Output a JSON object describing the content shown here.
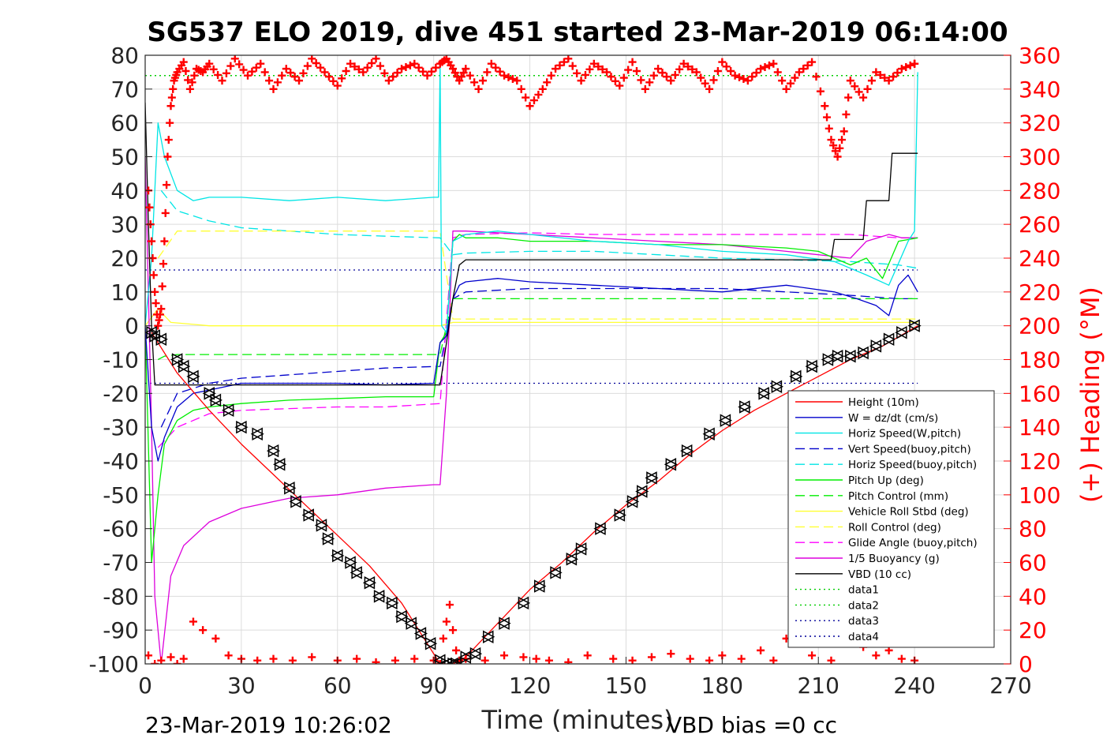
{
  "chart_data": {
    "type": "line",
    "title": "SG537 ELO 2019, dive 451 started 23-Mar-2019 06:14:00",
    "xlabel": "Time (minutes)",
    "ylabel_right": "(+) Heading (°M)",
    "xlim": [
      0,
      270
    ],
    "ylim_left": [
      -100,
      80
    ],
    "ylim_right": [
      0,
      360
    ],
    "x_ticks": [
      "0",
      "30",
      "60",
      "90",
      "120",
      "150",
      "180",
      "210",
      "240",
      "270"
    ],
    "y_ticks_left": [
      "-100",
      "-90",
      "-80",
      "-70",
      "-60",
      "-50",
      "-40",
      "-30",
      "-20",
      "-10",
      "0",
      "10",
      "20",
      "30",
      "40",
      "50",
      "60",
      "70",
      "80"
    ],
    "y_ticks_right": [
      "0",
      "20",
      "40",
      "60",
      "80",
      "100",
      "120",
      "140",
      "160",
      "180",
      "200",
      "220",
      "240",
      "260",
      "280",
      "300",
      "320",
      "340",
      "360"
    ],
    "grid": true,
    "legend_position": "lower-right",
    "footer_left": "23-Mar-2019 10:26:02",
    "footer_right": "VBD bias =0 cc",
    "colors": {
      "height": "#ff0000",
      "w": "#0000cc",
      "horiz": "#00e5e5",
      "pitch": "#00ee00",
      "roll": "#ffff33",
      "glide": "#ff00ff",
      "buoy": "#dd00dd",
      "vbd": "#000000",
      "data12": "#00cc00",
      "data34": "#000099",
      "heading": "#ff0000",
      "markers": "#000000"
    },
    "series": [
      {
        "name": "Height (10m)",
        "color": "#ff0000",
        "style": "solid",
        "x": [
          2,
          10,
          20,
          30,
          40,
          50,
          60,
          70,
          80,
          92,
          96,
          100,
          110,
          120,
          130,
          140,
          150,
          160,
          170,
          180,
          190,
          200,
          210,
          220,
          230,
          241
        ],
        "y": [
          -2,
          -14,
          -25,
          -35,
          -44,
          -53,
          -62,
          -71,
          -82,
          -100,
          -100,
          -98,
          -88,
          -78,
          -70,
          -61,
          -53,
          -46,
          -38,
          -31,
          -25,
          -20,
          -15,
          -10,
          -6,
          0
        ]
      },
      {
        "name": "W = dz/dt (cm/s)",
        "color": "#0000cc",
        "style": "solid",
        "x": [
          0,
          2,
          4,
          6,
          10,
          15,
          20,
          30,
          45,
          60,
          75,
          90,
          92,
          94,
          96,
          98,
          100,
          110,
          120,
          140,
          160,
          180,
          200,
          215,
          222,
          228,
          232,
          235,
          238,
          241
        ],
        "y": [
          0,
          -30,
          -40,
          -33,
          -24,
          -20,
          -19,
          -17,
          -17,
          -17,
          -17.5,
          -17,
          -5,
          -3,
          8,
          12,
          13,
          14,
          13,
          12,
          11,
          10,
          12,
          10,
          8,
          6,
          3,
          12,
          15,
          10
        ]
      },
      {
        "name": "Horiz Speed(W,pitch)",
        "color": "#00e5e5",
        "style": "solid",
        "x": [
          0,
          2,
          4,
          6,
          10,
          15,
          20,
          30,
          45,
          60,
          75,
          90,
          91.5,
          92,
          92.5,
          94,
          96,
          98,
          100,
          110,
          120,
          140,
          160,
          180,
          200,
          215,
          225,
          232,
          238,
          240,
          241
        ],
        "y": [
          0,
          20,
          60,
          50,
          40,
          37,
          38,
          38,
          37,
          38,
          37,
          38,
          38,
          78,
          0,
          -2,
          25,
          26,
          27,
          28,
          27,
          25,
          24,
          22,
          21,
          19,
          15,
          12,
          25,
          28,
          75
        ]
      },
      {
        "name": "Vert Speed(buoy,pitch)",
        "color": "#0000cc",
        "style": "dash",
        "x": [
          5,
          10,
          20,
          30,
          45,
          60,
          75,
          92,
          96,
          100,
          120,
          140,
          160,
          180,
          200,
          220,
          235,
          241
        ],
        "y": [
          -30,
          -20,
          -17,
          -15.5,
          -14.5,
          -13.5,
          -12.5,
          -12,
          8,
          10,
          11,
          11,
          11,
          11,
          10,
          9,
          8,
          8
        ]
      },
      {
        "name": "Horiz Speed(buoy,pitch)",
        "color": "#00e5e5",
        "style": "dash",
        "x": [
          5,
          10,
          20,
          30,
          45,
          60,
          75,
          92,
          96,
          100,
          120,
          140,
          160,
          180,
          200,
          220,
          235,
          241
        ],
        "y": [
          40,
          34,
          31,
          29,
          28,
          27,
          26.5,
          26,
          21,
          21.5,
          22,
          22,
          21,
          20,
          19.5,
          19,
          18,
          17
        ]
      },
      {
        "name": "Pitch Up (deg)",
        "color": "#00ee00",
        "style": "solid",
        "x": [
          0,
          2,
          4,
          6,
          10,
          15,
          20,
          30,
          45,
          60,
          75,
          90,
          92,
          94,
          96,
          98,
          100,
          110,
          120,
          140,
          160,
          180,
          200,
          210,
          220,
          225,
          230,
          235,
          241
        ],
        "y": [
          0,
          -70,
          -50,
          -35,
          -28,
          -25,
          -24,
          -23,
          -22,
          -21.5,
          -21,
          -21,
          -5,
          -2,
          25,
          27,
          26,
          26,
          25,
          25,
          24,
          24,
          23,
          22,
          18,
          20,
          14,
          25,
          26
        ]
      },
      {
        "name": "Pitch Control (mm)",
        "color": "#00ee00",
        "style": "dash",
        "x": [
          4,
          6,
          10,
          20,
          40,
          60,
          80,
          92,
          94,
          96,
          100,
          150,
          200,
          241
        ],
        "y": [
          -10,
          -9,
          -8.5,
          -8.5,
          -8.5,
          -8.5,
          -8.5,
          -8.5,
          0,
          8,
          8,
          8,
          8,
          8
        ]
      },
      {
        "name": "Vehicle Roll Stbd (deg)",
        "color": "#ffff33",
        "style": "solid",
        "x": [
          0,
          4,
          8,
          14,
          20,
          40,
          60,
          80,
          92,
          96,
          100,
          120,
          140,
          160,
          180,
          200,
          220,
          241
        ],
        "y": [
          0,
          5,
          1,
          0.5,
          0,
          0,
          0,
          0,
          0,
          1,
          1,
          1,
          1,
          1,
          1,
          1,
          1,
          1
        ]
      },
      {
        "name": "Roll Control (deg)",
        "color": "#ffff33",
        "style": "dash",
        "x": [
          4,
          10,
          40,
          92,
          96,
          150,
          200,
          241
        ],
        "y": [
          20,
          28,
          28,
          28,
          2,
          2,
          2,
          2
        ]
      },
      {
        "name": "Glide Angle (buoy,pitch)",
        "color": "#ff00ff",
        "style": "dash",
        "x": [
          4,
          10,
          20,
          30,
          45,
          60,
          75,
          92,
          96,
          100,
          120,
          140,
          160,
          180,
          200,
          220,
          235,
          241
        ],
        "y": [
          -36,
          -30,
          -26,
          -25,
          -24.5,
          -24,
          -24,
          -23,
          26,
          27,
          27.5,
          27,
          27,
          27,
          27,
          27,
          26,
          26
        ]
      },
      {
        "name": "1/5 Buoyancy (g)",
        "color": "#dd00dd",
        "style": "solid",
        "x": [
          0,
          2,
          3,
          5,
          8,
          12,
          20,
          30,
          45,
          60,
          75,
          90,
          92,
          94,
          96,
          100,
          120,
          140,
          160,
          180,
          200,
          220,
          225,
          232,
          236,
          241
        ],
        "y": [
          50,
          -30,
          -80,
          -100,
          -74,
          -65,
          -58,
          -54,
          -51,
          -50,
          -48,
          -47,
          -47,
          -20,
          28,
          28,
          27,
          26,
          25,
          24,
          22,
          20,
          25,
          27,
          26,
          26
        ]
      },
      {
        "name": "VBD (10 cc)",
        "color": "#000000",
        "style": "solid",
        "x": [
          0,
          1,
          2,
          3,
          4,
          90,
          92,
          94,
          96,
          98,
          100,
          120,
          140,
          160,
          180,
          200,
          214,
          215,
          224,
          225,
          232,
          233,
          238,
          241
        ],
        "y": [
          66,
          30,
          0,
          -17.5,
          -17.5,
          -17.5,
          -17.5,
          -5,
          8,
          18,
          19.5,
          19.5,
          19.5,
          19.5,
          19.5,
          19.5,
          19.5,
          25.5,
          25.5,
          37,
          37,
          51,
          51,
          51
        ]
      },
      {
        "name": "data1",
        "color": "#00cc00",
        "style": "dot",
        "x": [
          0,
          241
        ],
        "y": [
          74,
          74
        ]
      },
      {
        "name": "data2",
        "color": "#00cc00",
        "style": "dot",
        "x": [
          0,
          241
        ],
        "y": [
          74,
          74
        ]
      },
      {
        "name": "data3",
        "color": "#000099",
        "style": "dot",
        "x": [
          0,
          241
        ],
        "y": [
          16.5,
          16.5
        ]
      },
      {
        "name": "data4",
        "color": "#000099",
        "style": "dot",
        "x": [
          0,
          241
        ],
        "y": [
          -17,
          -17
        ]
      }
    ],
    "heading_right_axis": {
      "name": "(+) Heading (°M)",
      "color": "#ff0000",
      "x": [
        1,
        2,
        3,
        4,
        5,
        6,
        7,
        8,
        9,
        10,
        12,
        14,
        16,
        18,
        20,
        24,
        28,
        32,
        36,
        40,
        44,
        48,
        52,
        56,
        60,
        64,
        68,
        72,
        76,
        80,
        84,
        88,
        92,
        94,
        96,
        98,
        100,
        104,
        108,
        112,
        116,
        120,
        124,
        128,
        132,
        136,
        140,
        144,
        148,
        152,
        156,
        160,
        164,
        168,
        172,
        176,
        180,
        184,
        188,
        192,
        196,
        200,
        204,
        208,
        212,
        214,
        216,
        218,
        220,
        224,
        228,
        232,
        236,
        240
      ],
      "y": [
        280,
        250,
        220,
        200,
        210,
        250,
        300,
        330,
        345,
        350,
        356,
        340,
        352,
        350,
        355,
        345,
        358,
        348,
        355,
        340,
        352,
        345,
        358,
        350,
        342,
        355,
        350,
        358,
        345,
        352,
        355,
        348,
        355,
        358,
        352,
        345,
        352,
        340,
        355,
        348,
        345,
        330,
        340,
        352,
        358,
        345,
        355,
        350,
        342,
        356,
        340,
        352,
        345,
        355,
        350,
        340,
        356,
        348,
        345,
        352,
        355,
        340,
        350,
        356,
        330,
        310,
        300,
        315,
        345,
        335,
        350,
        345,
        352,
        355
      ],
      "wrap_x": [
        1,
        3,
        5,
        8,
        10,
        12,
        15,
        18,
        22,
        26,
        30,
        35,
        40,
        46,
        52,
        60,
        66,
        72,
        78,
        84,
        90,
        92,
        93,
        94,
        95,
        96,
        97,
        98,
        100,
        106,
        112,
        118,
        122,
        126,
        132,
        138,
        146,
        152,
        158,
        164,
        170,
        176,
        180,
        186,
        192,
        196,
        200,
        208,
        214,
        224,
        228,
        232,
        236,
        240
      ],
      "wrap_y": [
        5,
        0,
        2,
        4,
        0,
        3,
        25,
        20,
        15,
        5,
        3,
        2,
        3,
        2,
        4,
        2,
        3,
        1,
        2,
        3,
        2,
        0,
        15,
        25,
        35,
        20,
        8,
        2,
        3,
        2,
        5,
        4,
        3,
        2,
        1,
        5,
        3,
        2,
        4,
        6,
        3,
        2,
        5,
        3,
        8,
        2,
        15,
        5,
        2,
        10,
        5,
        8,
        3,
        2
      ]
    },
    "triangle_markers": {
      "x": [
        2,
        3,
        5,
        10,
        12,
        15,
        20,
        22,
        26,
        30,
        35,
        40,
        42,
        45,
        47,
        51,
        55,
        57,
        60,
        64,
        66,
        70,
        73,
        77,
        80,
        83,
        86,
        89,
        92,
        94,
        96,
        97,
        100,
        103,
        107,
        112,
        118,
        123,
        128,
        133,
        136,
        142,
        148,
        152,
        155,
        158,
        164,
        169,
        176,
        181,
        187,
        193,
        197,
        203,
        208,
        213,
        216,
        220,
        224,
        228,
        232,
        236,
        240
      ],
      "y": [
        -2,
        -3,
        -4,
        -10,
        -12,
        -15,
        -20,
        -22,
        -25,
        -30,
        -32,
        -37,
        -41,
        -48,
        -52,
        -56,
        -59,
        -63,
        -68,
        -70,
        -73,
        -76,
        -80,
        -82,
        -86,
        -88,
        -91,
        -94,
        -99,
        -100,
        -100,
        -100,
        -98,
        -97,
        -92,
        -88,
        -82,
        -77,
        -73,
        -69,
        -66,
        -60,
        -56,
        -52,
        -49,
        -45,
        -41,
        -37,
        -32,
        -28,
        -24,
        -20,
        -18,
        -15,
        -12,
        -10,
        -9,
        -9,
        -8,
        -6,
        -4,
        -2,
        0
      ]
    }
  }
}
